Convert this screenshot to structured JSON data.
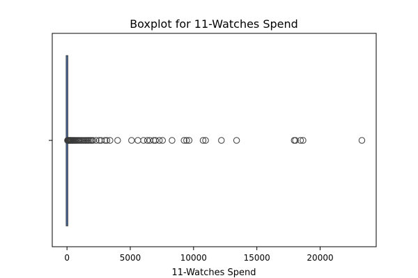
{
  "chart_data": {
    "type": "boxplot",
    "title": "Boxplot for 11-Watches Spend",
    "xlabel": "11-Watches Spend",
    "ylabel": "",
    "xlim": [
      -1165,
      24430
    ],
    "xticks": [
      0,
      5000,
      10000,
      15000,
      20000
    ],
    "xtick_labels": [
      "0",
      "5000",
      "10000",
      "15000",
      "20000"
    ],
    "grid": false,
    "box": {
      "q1": 0,
      "median": 0,
      "q3": 0,
      "whisker_low": 0,
      "whisker_high": 0
    },
    "outliers": [
      40,
      80,
      120,
      160,
      200,
      250,
      300,
      350,
      400,
      460,
      520,
      580,
      650,
      720,
      800,
      880,
      960,
      1050,
      1150,
      1250,
      1350,
      1450,
      1550,
      1650,
      1750,
      1850,
      1950,
      2050,
      2300,
      2550,
      2700,
      3000,
      3150,
      3400,
      4000,
      5100,
      5600,
      6050,
      6350,
      6550,
      6850,
      7000,
      7300,
      7550,
      8300,
      9250,
      9450,
      9650,
      10750,
      10950,
      12200,
      13400,
      17950,
      18050,
      18450,
      18650,
      23300
    ]
  }
}
